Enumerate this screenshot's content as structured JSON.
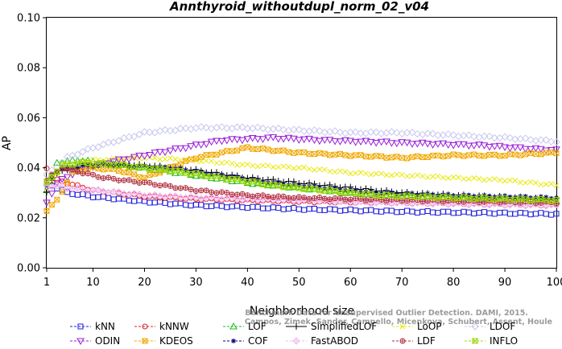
{
  "chart_data": {
    "type": "line",
    "title": "Annthyroid_withoutdupl_norm_02_v04",
    "xlabel": "Neighborhood size",
    "ylabel": "AP",
    "xlim": [
      1,
      100
    ],
    "ylim": [
      0,
      0.1
    ],
    "xticks": [
      "1",
      "10",
      "20",
      "30",
      "40",
      "50",
      "60",
      "70",
      "80",
      "90",
      "100"
    ],
    "yticks": [
      "0.00",
      "0.02",
      "0.04",
      "0.06",
      "0.08",
      "0.10"
    ],
    "credit": [
      "Benchmark Data for Unsupervised Outlier Detection. DAMI, 2015.",
      "Campos, Zimek, Sander, Campello, Micenkova, Schubert, Assent, Houle"
    ],
    "series": [
      {
        "name": "kNN",
        "color": "#1f1fd8",
        "marker": "square",
        "anchors": [
          [
            1,
            0.034
          ],
          [
            5,
            0.03
          ],
          [
            10,
            0.0285
          ],
          [
            20,
            0.0265
          ],
          [
            30,
            0.025
          ],
          [
            50,
            0.0235
          ],
          [
            70,
            0.0225
          ],
          [
            100,
            0.0215
          ]
        ]
      },
      {
        "name": "kNNW",
        "color": "#e01f1f",
        "marker": "circle",
        "anchors": [
          [
            1,
            0.04
          ],
          [
            3,
            0.035
          ],
          [
            10,
            0.031
          ],
          [
            20,
            0.0285
          ],
          [
            30,
            0.0275
          ],
          [
            50,
            0.0265
          ],
          [
            70,
            0.026
          ],
          [
            100,
            0.025
          ]
        ]
      },
      {
        "name": "LOF",
        "color": "#1fb81f",
        "marker": "triangle-up",
        "anchors": [
          [
            1,
            0.031
          ],
          [
            3,
            0.042
          ],
          [
            7,
            0.043
          ],
          [
            12,
            0.042
          ],
          [
            20,
            0.04
          ],
          [
            30,
            0.037
          ],
          [
            40,
            0.034
          ],
          [
            50,
            0.032
          ],
          [
            60,
            0.03
          ],
          [
            70,
            0.029
          ],
          [
            80,
            0.028
          ],
          [
            100,
            0.027
          ]
        ]
      },
      {
        "name": "SimplifiedLOF",
        "color": "#000000",
        "marker": "plus",
        "anchors": [
          [
            1,
            0.03
          ],
          [
            3,
            0.038
          ],
          [
            7,
            0.04
          ],
          [
            12,
            0.041
          ],
          [
            20,
            0.041
          ],
          [
            30,
            0.039
          ],
          [
            40,
            0.036
          ],
          [
            50,
            0.034
          ],
          [
            60,
            0.032
          ],
          [
            70,
            0.03
          ],
          [
            80,
            0.029
          ],
          [
            100,
            0.0275
          ]
        ]
      },
      {
        "name": "LoOP",
        "color": "#e8e800",
        "marker": "x",
        "anchors": [
          [
            1,
            0.032
          ],
          [
            4,
            0.04
          ],
          [
            10,
            0.043
          ],
          [
            20,
            0.044
          ],
          [
            30,
            0.043
          ],
          [
            40,
            0.041
          ],
          [
            50,
            0.04
          ],
          [
            60,
            0.038
          ],
          [
            70,
            0.037
          ],
          [
            80,
            0.036
          ],
          [
            90,
            0.035
          ],
          [
            100,
            0.033
          ]
        ]
      },
      {
        "name": "LDOF",
        "color": "#c8c8f0",
        "marker": "diamond",
        "anchors": [
          [
            1,
            0.037
          ],
          [
            5,
            0.044
          ],
          [
            10,
            0.048
          ],
          [
            20,
            0.054
          ],
          [
            30,
            0.056
          ],
          [
            40,
            0.056
          ],
          [
            50,
            0.055
          ],
          [
            60,
            0.054
          ],
          [
            70,
            0.054
          ],
          [
            80,
            0.053
          ],
          [
            90,
            0.052
          ],
          [
            100,
            0.0505
          ]
        ]
      },
      {
        "name": "ODIN",
        "color": "#9a1fd8",
        "marker": "triangle-down",
        "anchors": [
          [
            1,
            0.026
          ],
          [
            3,
            0.034
          ],
          [
            8,
            0.04
          ],
          [
            15,
            0.043
          ],
          [
            25,
            0.047
          ],
          [
            35,
            0.051
          ],
          [
            45,
            0.052
          ],
          [
            55,
            0.051
          ],
          [
            70,
            0.05
          ],
          [
            85,
            0.049
          ],
          [
            100,
            0.047
          ]
        ]
      },
      {
        "name": "KDEOS",
        "color": "#f0a800",
        "marker": "square-x",
        "anchors": [
          [
            1,
            0.023
          ],
          [
            3,
            0.027
          ],
          [
            6,
            0.038
          ],
          [
            10,
            0.04
          ],
          [
            15,
            0.039
          ],
          [
            20,
            0.036
          ],
          [
            25,
            0.04
          ],
          [
            30,
            0.044
          ],
          [
            35,
            0.046
          ],
          [
            40,
            0.048
          ],
          [
            45,
            0.047
          ],
          [
            50,
            0.046
          ],
          [
            60,
            0.045
          ],
          [
            70,
            0.044
          ],
          [
            80,
            0.045
          ],
          [
            90,
            0.045
          ],
          [
            100,
            0.046
          ]
        ]
      },
      {
        "name": "COF",
        "color": "#00007a",
        "marker": "star",
        "anchors": [
          [
            1,
            0.032
          ],
          [
            3,
            0.039
          ],
          [
            8,
            0.041
          ],
          [
            15,
            0.041
          ],
          [
            25,
            0.04
          ],
          [
            35,
            0.037
          ],
          [
            45,
            0.034
          ],
          [
            55,
            0.032
          ],
          [
            65,
            0.03
          ],
          [
            80,
            0.029
          ],
          [
            100,
            0.028
          ]
        ]
      },
      {
        "name": "FastABOD",
        "color": "#f0b8f0",
        "marker": "diamond-plus",
        "anchors": [
          [
            1,
            0.033
          ],
          [
            5,
            0.032
          ],
          [
            10,
            0.031
          ],
          [
            20,
            0.029
          ],
          [
            30,
            0.028
          ],
          [
            50,
            0.027
          ],
          [
            70,
            0.026
          ],
          [
            100,
            0.025
          ]
        ]
      },
      {
        "name": "LDF",
        "color": "#b03040",
        "marker": "circle-plus",
        "anchors": [
          [
            1,
            0.035
          ],
          [
            4,
            0.04
          ],
          [
            8,
            0.038
          ],
          [
            12,
            0.036
          ],
          [
            20,
            0.034
          ],
          [
            30,
            0.031
          ],
          [
            40,
            0.029
          ],
          [
            50,
            0.028
          ],
          [
            70,
            0.027
          ],
          [
            100,
            0.026
          ]
        ]
      },
      {
        "name": "INFLO",
        "color": "#9ad800",
        "marker": "hourglass",
        "anchors": [
          [
            1,
            0.034
          ],
          [
            4,
            0.041
          ],
          [
            8,
            0.042
          ],
          [
            15,
            0.041
          ],
          [
            25,
            0.039
          ],
          [
            35,
            0.036
          ],
          [
            45,
            0.033
          ],
          [
            55,
            0.031
          ],
          [
            65,
            0.029
          ],
          [
            80,
            0.028
          ],
          [
            100,
            0.027
          ]
        ]
      }
    ]
  }
}
